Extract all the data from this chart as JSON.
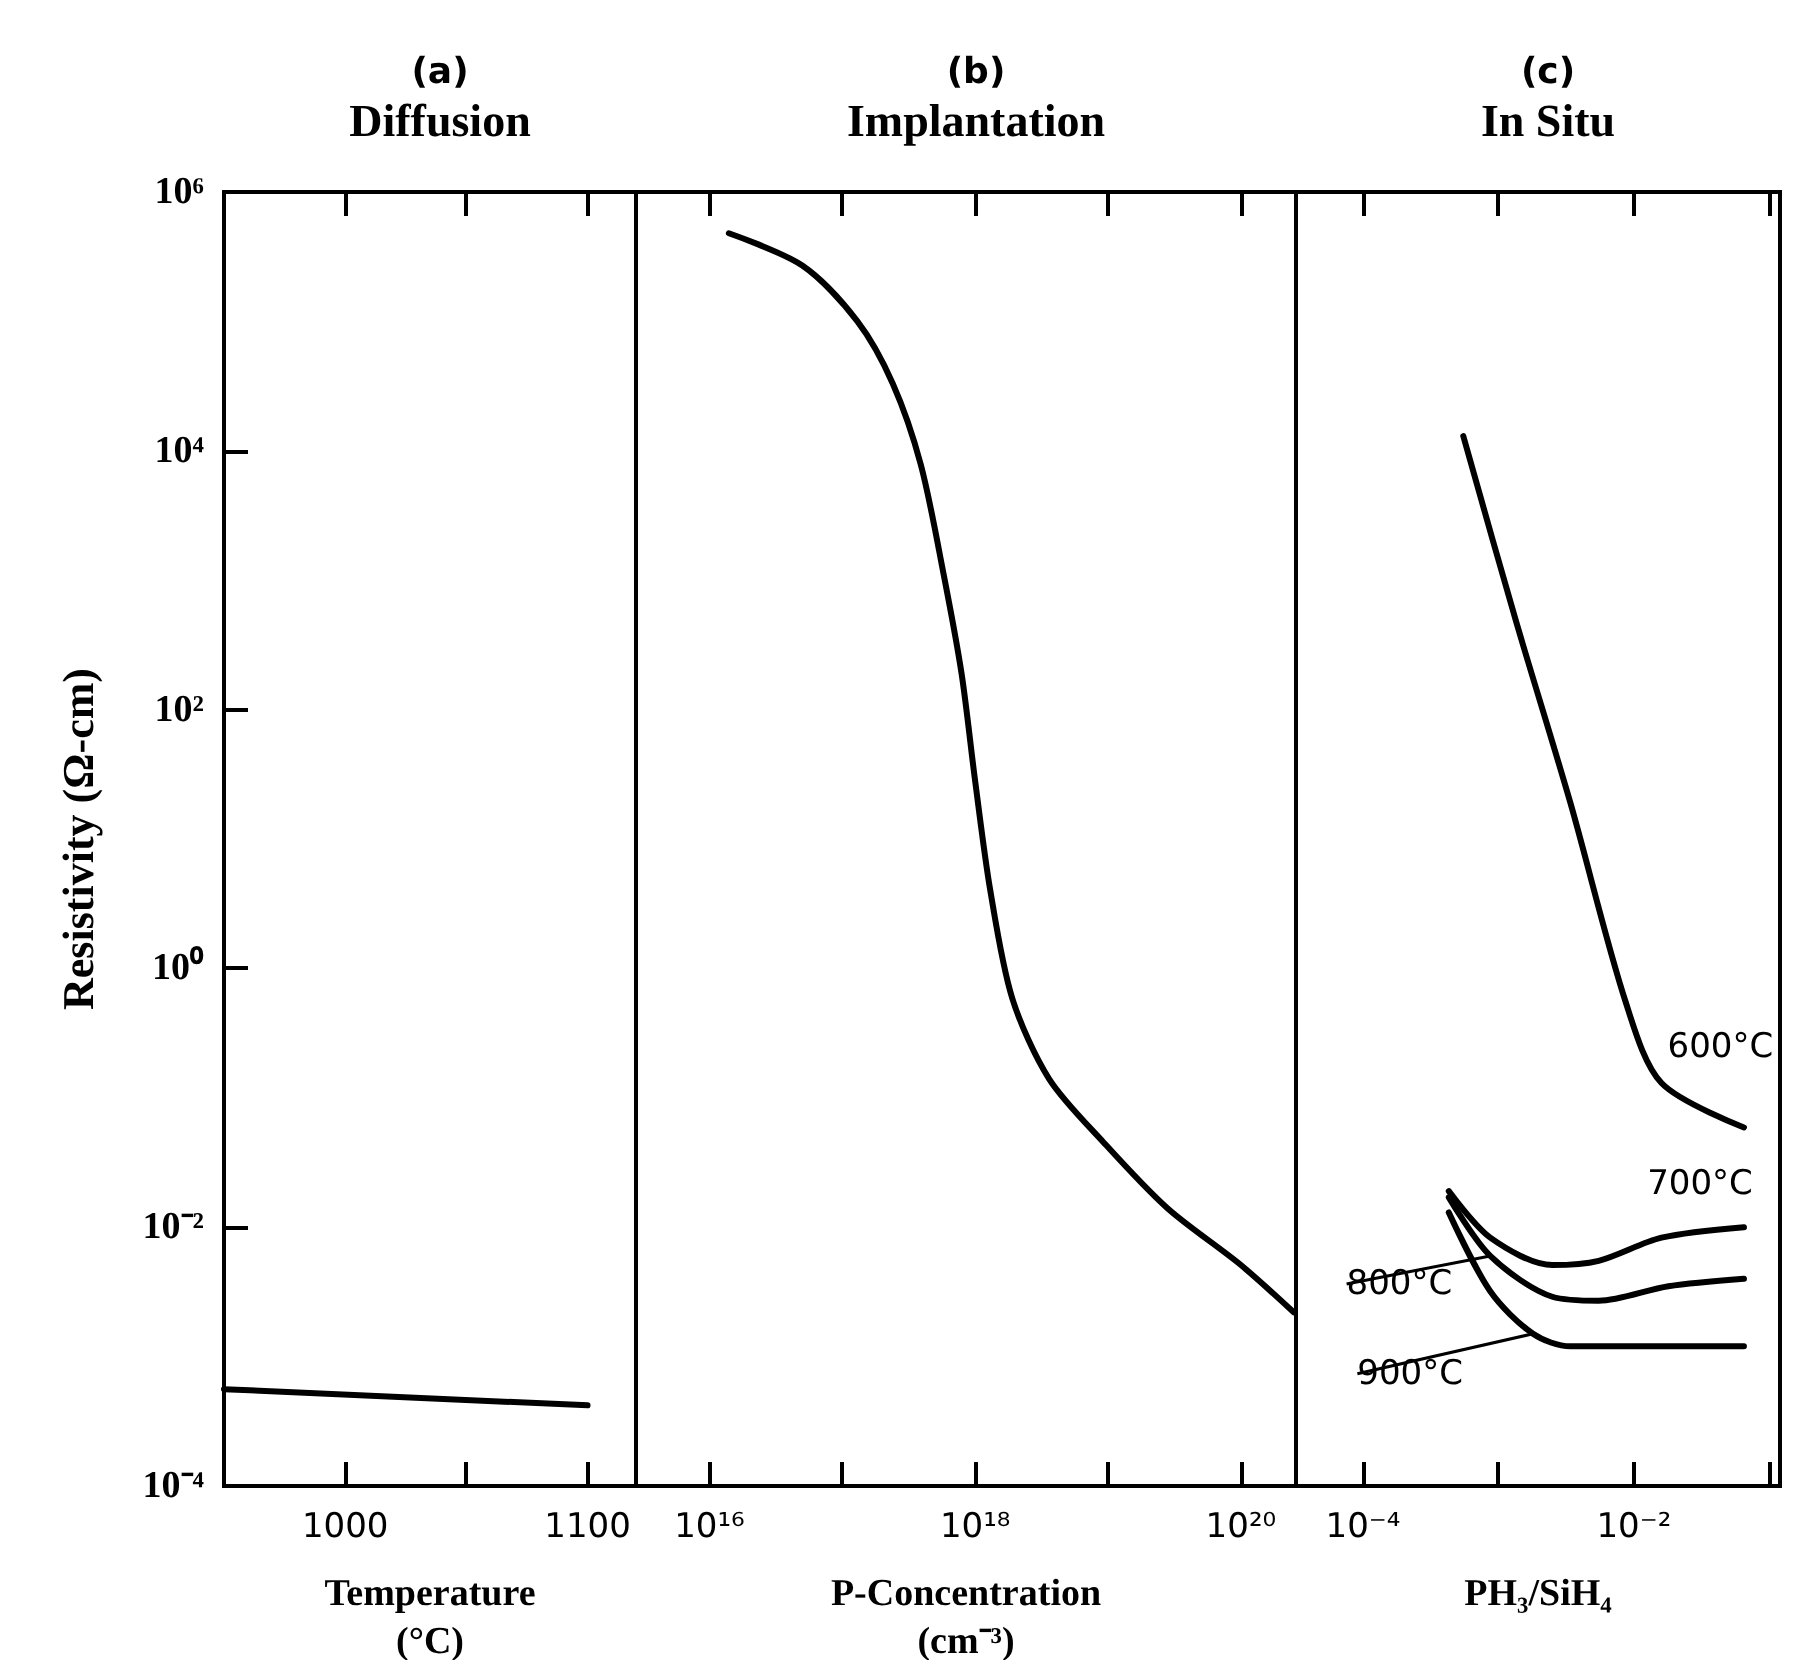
{
  "chart_data": [
    {
      "type": "line",
      "title": "(a)",
      "subtitle": "Diffusion",
      "xlabel": "Temperature\n(°C)",
      "ylabel": "Resistivity (Ω-cm)",
      "log": "y",
      "marker": "none",
      "x": [
        950,
        1100
      ],
      "values": [
        0.00056,
        0.00042
      ],
      "color": "#000000",
      "xlim": [
        950,
        1120
      ],
      "xticks": [
        1000,
        {
          "value": 1050,
          "label": null
        },
        1100
      ],
      "ylim": [
        0.0001,
        1000000
      ],
      "yticks": [
        {
          "value": 0.0001,
          "label": "10⁻⁴"
        },
        {
          "value": 0.01,
          "label": "10⁻²"
        },
        {
          "value": 1,
          "label": "10⁰"
        },
        {
          "value": 100,
          "label": "10²"
        },
        {
          "value": 10000,
          "label": "10⁴"
        },
        {
          "value": 1000000,
          "label": "10⁶"
        }
      ]
    },
    {
      "type": "line",
      "title": "(b)",
      "subtitle": "Implantation",
      "xlabel": "P-Concentration\n(cm⁻³)",
      "log": "xy",
      "marker": "none",
      "tick_labels": "x",
      "x": [
        1.4e+16,
        5e+16,
        1.3e+17,
        2.4e+17,
        3.9e+17,
        5.8e+17,
        7.9e+17,
        1e+18,
        1.3e+18,
        1.9e+18,
        3.6e+18,
        9.3e+18,
        2.8e+19,
        1e+20,
        2.5e+20
      ],
      "values": [
        480000,
        270000,
        100000,
        33000,
        7800,
        1100,
        190,
        28,
        4,
        0.59,
        0.14,
        0.045,
        0.014,
        0.0051,
        0.0022
      ],
      "color": "#000000",
      "xlim": [
        2800000000000000.0,
        2.6e+20
      ],
      "xticks": [
        {
          "value": 1e+16,
          "label": "10¹⁶"
        },
        {
          "value": 1e+17,
          "label": null
        },
        {
          "value": 1e+18,
          "label": "10¹⁸"
        },
        {
          "value": 1e+19,
          "label": null
        },
        {
          "value": 1e+20,
          "label": "10²⁰"
        }
      ],
      "ylim": [
        0.0001,
        1000000
      ]
    },
    {
      "type": "line",
      "title": "(c)",
      "subtitle": "In Situ",
      "xlabel": "PH₃/SiH₄",
      "log": "xy",
      "marker": "none",
      "tick_labels": "x",
      "series": [
        {
          "name": "600°C",
          "color": "#000000",
          "x": [
            0.00055,
            0.00135,
            0.0034,
            0.0087,
            0.016,
            0.065
          ],
          "values": [
            13000,
            480,
            19,
            0.55,
            0.13,
            0.059
          ]
        },
        {
          "name": "700°C",
          "color": "#000000",
          "x": [
            0.00043,
            0.00087,
            0.0025,
            0.0055,
            0.016,
            0.065
          ],
          "values": [
            0.019,
            0.0083,
            0.0051,
            0.0055,
            0.0083,
            0.01
          ]
        },
        {
          "name": "800°C",
          "color": "#000000",
          "x": [
            0.00043,
            0.00087,
            0.0025,
            0.0055,
            0.018,
            0.065
          ],
          "values": [
            0.017,
            0.006,
            0.0029,
            0.0027,
            0.0035,
            0.004
          ]
        },
        {
          "name": "900°C",
          "color": "#000000",
          "x": [
            0.00043,
            0.00087,
            0.0018,
            0.0034,
            0.065
          ],
          "values": [
            0.013,
            0.0032,
            0.0015,
            0.0012,
            0.0012
          ]
        }
      ],
      "xlim": [
        3.2e-05,
        0.12
      ],
      "xticks": [
        {
          "value": 0.0001,
          "label": "10⁻⁴"
        },
        {
          "value": 0.001,
          "label": null
        },
        {
          "value": 0.01,
          "label": "10⁻²"
        },
        {
          "value": 0.1,
          "label": null
        }
      ],
      "ylim": [
        0.0001,
        1000000
      ]
    }
  ]
}
